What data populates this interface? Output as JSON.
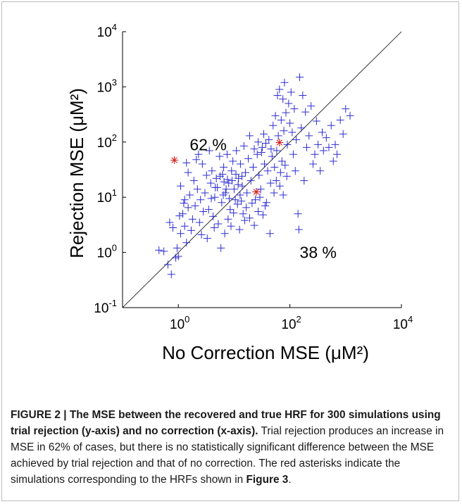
{
  "figure": {
    "caption": {
      "label": "FIGURE 2 | ",
      "title": "The MSE between the recovered and true HRF for 300 simulations using trial rejection (y-axis) and no correction (x-axis).",
      "body_1": " Trial rejection produces an increase in MSE in 62% of cases, but there is no statistically significant difference between the MSE achieved by trial rejection and that of no correction. The red asterisks indicate the simulations corresponding to the HRFs shown in ",
      "ref": "Figure 3",
      "body_2": "."
    }
  },
  "chart_data": {
    "type": "scatter",
    "title": "",
    "xlabel": "No Correction MSE (μM²)",
    "ylabel": "Rejection MSE (μM²)",
    "xscale": "log",
    "yscale": "log",
    "xlim": [
      0.1,
      10000
    ],
    "ylim": [
      0.1,
      10000
    ],
    "x_ticks": [
      {
        "base": "10",
        "exp": "0"
      },
      {
        "base": "10",
        "exp": "2"
      },
      {
        "base": "10",
        "exp": "4"
      }
    ],
    "y_ticks": [
      {
        "base": "10",
        "exp": "-1"
      },
      {
        "base": "10",
        "exp": "0"
      },
      {
        "base": "10",
        "exp": "1"
      },
      {
        "base": "10",
        "exp": "2"
      },
      {
        "base": "10",
        "exp": "3"
      },
      {
        "base": "10",
        "exp": "4"
      }
    ],
    "annotations": [
      {
        "text": "62 %",
        "x": 1.6,
        "y": 90
      },
      {
        "text": "38 %",
        "x": 150,
        "y": 1.0
      }
    ],
    "identity_line": true,
    "grid": false,
    "legend": "none",
    "colors": {
      "points": "#2d2dd2",
      "highlight": "#d42020",
      "line": "#000000"
    },
    "highlight_points": [
      {
        "x": 0.85,
        "y": 47
      },
      {
        "x": 25,
        "y": 12.5
      },
      {
        "x": 65,
        "y": 98
      }
    ],
    "points": [
      [
        0.45,
        1.1
      ],
      [
        0.55,
        1.05
      ],
      [
        0.65,
        0.6
      ],
      [
        0.75,
        0.4
      ],
      [
        0.9,
        0.8
      ],
      [
        1.0,
        0.85
      ],
      [
        0.95,
        1.2
      ],
      [
        1.1,
        2.2
      ],
      [
        1.2,
        5.0
      ],
      [
        1.3,
        3.0
      ],
      [
        1.4,
        1.5
      ],
      [
        1.5,
        6.5
      ],
      [
        1.3,
        9.0
      ],
      [
        1.6,
        11
      ],
      [
        1.8,
        4.0
      ],
      [
        1.7,
        2.5
      ],
      [
        2.0,
        7.0
      ],
      [
        2.2,
        14
      ],
      [
        1.9,
        20
      ],
      [
        2.5,
        9.0
      ],
      [
        2.8,
        5.5
      ],
      [
        2.4,
        3.5
      ],
      [
        3.0,
        12
      ],
      [
        3.2,
        25
      ],
      [
        2.7,
        40
      ],
      [
        3.5,
        6.0
      ],
      [
        3.8,
        18
      ],
      [
        4.0,
        30
      ],
      [
        4.5,
        10
      ],
      [
        4.2,
        4.5
      ],
      [
        5.0,
        15
      ],
      [
        5.5,
        55
      ],
      [
        4.8,
        22
      ],
      [
        6.0,
        8.0
      ],
      [
        6.5,
        35
      ],
      [
        7.0,
        12
      ],
      [
        6.2,
        26
      ],
      [
        7.5,
        60
      ],
      [
        8.0,
        18
      ],
      [
        8.5,
        6.0
      ],
      [
        9.0,
        30
      ],
      [
        9.5,
        45
      ],
      [
        10,
        14
      ],
      [
        11,
        70
      ],
      [
        12,
        22
      ],
      [
        10.5,
        9.0
      ],
      [
        13,
        40
      ],
      [
        14,
        16
      ],
      [
        15,
        85
      ],
      [
        16,
        28
      ],
      [
        14.5,
        5.0
      ],
      [
        18,
        50
      ],
      [
        20,
        20
      ],
      [
        17,
        12
      ],
      [
        22,
        35
      ],
      [
        24,
        9.0
      ],
      [
        26,
        60
      ],
      [
        28,
        25
      ],
      [
        30,
        14
      ],
      [
        32,
        80
      ],
      [
        35,
        40
      ],
      [
        38,
        8.0
      ],
      [
        40,
        30
      ],
      [
        42,
        110
      ],
      [
        45,
        18
      ],
      [
        48,
        55
      ],
      [
        50,
        200
      ],
      [
        55,
        300
      ],
      [
        58,
        70
      ],
      [
        60,
        700
      ],
      [
        62,
        130
      ],
      [
        65,
        900
      ],
      [
        70,
        250
      ],
      [
        72,
        45
      ],
      [
        75,
        600
      ],
      [
        78,
        160
      ],
      [
        80,
        1200
      ],
      [
        85,
        340
      ],
      [
        90,
        90
      ],
      [
        95,
        500
      ],
      [
        100,
        220
      ],
      [
        105,
        800
      ],
      [
        110,
        150
      ],
      [
        115,
        60
      ],
      [
        120,
        400
      ],
      [
        125,
        30
      ],
      [
        130,
        110
      ],
      [
        140,
        5.0
      ],
      [
        145,
        2.6
      ],
      [
        150,
        1500
      ],
      [
        160,
        180
      ],
      [
        170,
        700
      ],
      [
        180,
        20
      ],
      [
        190,
        350
      ],
      [
        200,
        80
      ],
      [
        220,
        130
      ],
      [
        240,
        450
      ],
      [
        260,
        40
      ],
      [
        280,
        60
      ],
      [
        300,
        240
      ],
      [
        320,
        90
      ],
      [
        350,
        30
      ],
      [
        380,
        150
      ],
      [
        400,
        70
      ],
      [
        450,
        120
      ],
      [
        500,
        80
      ],
      [
        550,
        200
      ],
      [
        600,
        45
      ],
      [
        650,
        90
      ],
      [
        700,
        60
      ],
      [
        800,
        250
      ],
      [
        900,
        140
      ],
      [
        1000,
        400
      ],
      [
        1200,
        300
      ],
      [
        1.1,
        16
      ],
      [
        1.5,
        28
      ],
      [
        2.1,
        48
      ],
      [
        2.6,
        2.1
      ],
      [
        3.3,
        1.8
      ],
      [
        3.6,
        70
      ],
      [
        4.4,
        2.8
      ],
      [
        5.2,
        3.3
      ],
      [
        5.8,
        1.2
      ],
      [
        6.8,
        2.2
      ],
      [
        7.8,
        4.0
      ],
      [
        8.8,
        3.0
      ],
      [
        9.8,
        5.2
      ],
      [
        11.5,
        7.5
      ],
      [
        12.5,
        2.6
      ],
      [
        13.5,
        8.5
      ],
      [
        15.5,
        3.8
      ],
      [
        16.5,
        6.5
      ],
      [
        19,
        4.2
      ],
      [
        21,
        7.8
      ],
      [
        23,
        3.1
      ],
      [
        27,
        5.5
      ],
      [
        29,
        10
      ],
      [
        33,
        4.8
      ],
      [
        36,
        7.0
      ],
      [
        44,
        2.2
      ],
      [
        52,
        12
      ],
      [
        34,
        140
      ],
      [
        37,
        95
      ],
      [
        31,
        65
      ],
      [
        27,
        100
      ],
      [
        23,
        75
      ],
      [
        19,
        130
      ],
      [
        46,
        75
      ],
      [
        53,
        35
      ],
      [
        57,
        20
      ],
      [
        68,
        28
      ],
      [
        82,
        38
      ],
      [
        88,
        24
      ],
      [
        66,
        16
      ],
      [
        76,
        11
      ],
      [
        2.3,
        60
      ],
      [
        1.4,
        42
      ],
      [
        0.7,
        3.5
      ],
      [
        0.8,
        2.8
      ],
      [
        1.05,
        4.6
      ],
      [
        1.25,
        7.8
      ],
      [
        9.2,
        20
      ],
      [
        10.8,
        26
      ],
      [
        11.8,
        17
      ],
      [
        12.8,
        11
      ],
      [
        13.8,
        24
      ],
      [
        7.2,
        14
      ],
      [
        8.2,
        9.5
      ],
      [
        6.6,
        19
      ],
      [
        5.6,
        24
      ],
      [
        4.6,
        15
      ],
      [
        3.9,
        9.5
      ],
      [
        6.4,
        11
      ],
      [
        7.6,
        21
      ]
    ]
  }
}
